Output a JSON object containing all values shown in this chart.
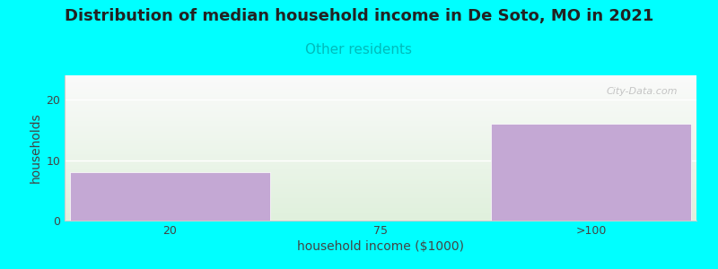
{
  "title": "Distribution of median household income in De Soto, MO in 2021",
  "subtitle": "Other residents",
  "xlabel": "household income ($1000)",
  "ylabel": "households",
  "background_color": "#00FFFF",
  "plot_bg_top": "#f8f8f8",
  "plot_bg_bottom": "#dff0dc",
  "bar_color": "#c4a8d4",
  "categories": [
    "20",
    "75",
    ">100"
  ],
  "values": [
    8,
    0,
    16
  ],
  "ylim": [
    0,
    24
  ],
  "yticks": [
    0,
    10,
    20
  ],
  "title_fontsize": 13,
  "subtitle_fontsize": 11,
  "subtitle_color": "#00BBBB",
  "axis_label_fontsize": 10,
  "tick_fontsize": 9,
  "watermark": "City-Data.com",
  "title_color": "#222222"
}
